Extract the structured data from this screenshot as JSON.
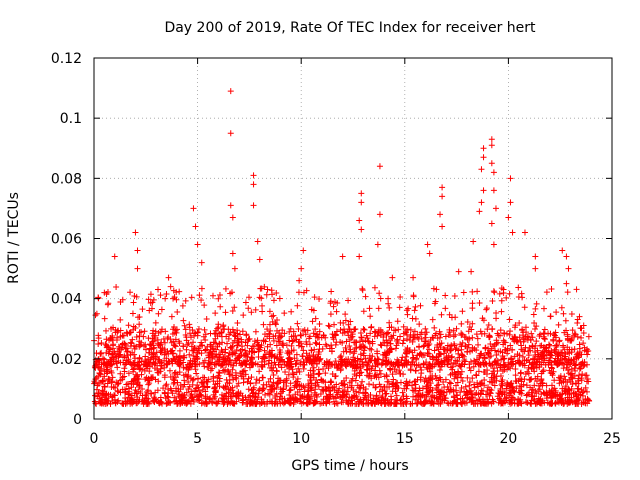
{
  "chart_data": {
    "type": "scatter",
    "title": "Day 200 of 2019, Rate Of TEC Index for receiver hert",
    "xlabel": "GPS time / hours",
    "ylabel": "ROTI / TECUs",
    "xlim": [
      0,
      25
    ],
    "ylim": [
      0,
      0.12
    ],
    "xticks": [
      0,
      5,
      10,
      15,
      20,
      25
    ],
    "yticks": [
      0,
      0.02,
      0.04,
      0.06,
      0.08,
      0.1,
      0.12
    ],
    "xtick_labels": [
      "0",
      "5",
      "10",
      "15",
      "20",
      "25"
    ],
    "ytick_labels": [
      "0",
      "0.02",
      "0.04",
      "0.06",
      "0.08",
      "0.1",
      "0.12"
    ],
    "grid": true,
    "marker": "+",
    "series": [
      {
        "name": "ROTI",
        "color": "#ff0000",
        "data_range_hours": [
          0,
          23.9
        ],
        "typical_range": [
          0.005,
          0.03
        ],
        "points": [
          {
            "x": 0.5,
            "y": 0.042
          },
          {
            "x": 1.0,
            "y": 0.054
          },
          {
            "x": 2.0,
            "y": 0.062
          },
          {
            "x": 2.1,
            "y": 0.056
          },
          {
            "x": 2.1,
            "y": 0.05
          },
          {
            "x": 3.6,
            "y": 0.047
          },
          {
            "x": 3.7,
            "y": 0.044
          },
          {
            "x": 4.8,
            "y": 0.07
          },
          {
            "x": 4.9,
            "y": 0.064
          },
          {
            "x": 5.0,
            "y": 0.058
          },
          {
            "x": 5.2,
            "y": 0.052
          },
          {
            "x": 6.6,
            "y": 0.109
          },
          {
            "x": 6.6,
            "y": 0.095
          },
          {
            "x": 6.6,
            "y": 0.071
          },
          {
            "x": 6.7,
            "y": 0.067
          },
          {
            "x": 6.7,
            "y": 0.055
          },
          {
            "x": 6.8,
            "y": 0.05
          },
          {
            "x": 7.7,
            "y": 0.081
          },
          {
            "x": 7.7,
            "y": 0.078
          },
          {
            "x": 7.7,
            "y": 0.071
          },
          {
            "x": 7.9,
            "y": 0.059
          },
          {
            "x": 8.0,
            "y": 0.053
          },
          {
            "x": 10.1,
            "y": 0.056
          },
          {
            "x": 10.0,
            "y": 0.05
          },
          {
            "x": 9.9,
            "y": 0.046
          },
          {
            "x": 12.0,
            "y": 0.054
          },
          {
            "x": 12.9,
            "y": 0.075
          },
          {
            "x": 12.9,
            "y": 0.072
          },
          {
            "x": 12.8,
            "y": 0.066
          },
          {
            "x": 12.9,
            "y": 0.063
          },
          {
            "x": 12.8,
            "y": 0.054
          },
          {
            "x": 13.8,
            "y": 0.084
          },
          {
            "x": 13.8,
            "y": 0.068
          },
          {
            "x": 13.7,
            "y": 0.058
          },
          {
            "x": 14.4,
            "y": 0.047
          },
          {
            "x": 15.4,
            "y": 0.047
          },
          {
            "x": 16.1,
            "y": 0.058
          },
          {
            "x": 16.2,
            "y": 0.055
          },
          {
            "x": 16.8,
            "y": 0.077
          },
          {
            "x": 16.8,
            "y": 0.074
          },
          {
            "x": 16.7,
            "y": 0.068
          },
          {
            "x": 16.8,
            "y": 0.064
          },
          {
            "x": 17.6,
            "y": 0.049
          },
          {
            "x": 18.3,
            "y": 0.059
          },
          {
            "x": 18.2,
            "y": 0.049
          },
          {
            "x": 18.6,
            "y": 0.069
          },
          {
            "x": 18.8,
            "y": 0.09
          },
          {
            "x": 18.8,
            "y": 0.087
          },
          {
            "x": 18.7,
            "y": 0.083
          },
          {
            "x": 18.8,
            "y": 0.076
          },
          {
            "x": 18.7,
            "y": 0.072
          },
          {
            "x": 19.2,
            "y": 0.093
          },
          {
            "x": 19.2,
            "y": 0.091
          },
          {
            "x": 19.2,
            "y": 0.085
          },
          {
            "x": 19.3,
            "y": 0.082
          },
          {
            "x": 19.3,
            "y": 0.076
          },
          {
            "x": 19.4,
            "y": 0.07
          },
          {
            "x": 19.2,
            "y": 0.065
          },
          {
            "x": 19.3,
            "y": 0.058
          },
          {
            "x": 20.1,
            "y": 0.08
          },
          {
            "x": 20.1,
            "y": 0.072
          },
          {
            "x": 20.0,
            "y": 0.067
          },
          {
            "x": 20.2,
            "y": 0.062
          },
          {
            "x": 20.8,
            "y": 0.062
          },
          {
            "x": 21.3,
            "y": 0.054
          },
          {
            "x": 21.3,
            "y": 0.05
          },
          {
            "x": 22.6,
            "y": 0.056
          },
          {
            "x": 22.8,
            "y": 0.054
          },
          {
            "x": 22.9,
            "y": 0.05
          },
          {
            "x": 22.8,
            "y": 0.045
          }
        ]
      }
    ]
  }
}
